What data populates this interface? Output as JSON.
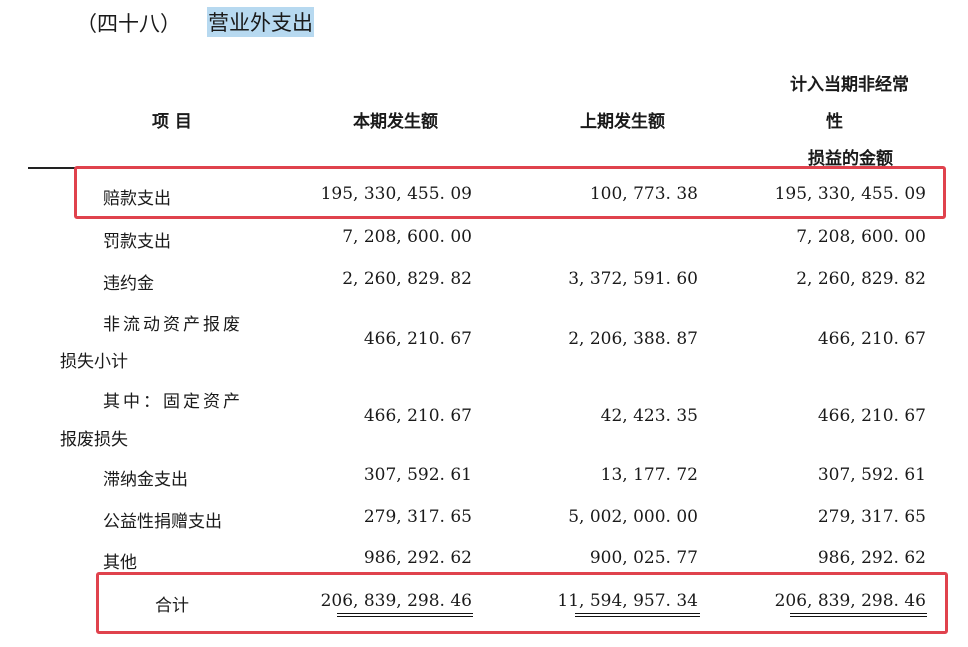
{
  "section": {
    "number": "（四十八）",
    "title": "营业外支出"
  },
  "headers": {
    "item": "项 目",
    "current": "本期发生额",
    "previous": "上期发生额",
    "nonrecurring_line1": "计入当期非经常",
    "nonrecurring_line2": "性",
    "nonrecurring_line3": "损益的金额"
  },
  "rows": [
    {
      "label_line1": "赔款支出",
      "label_line2": "",
      "current": "195, 330, 455. 09",
      "previous": "100, 773. 38",
      "nonrecurring": "195, 330, 455. 09"
    },
    {
      "label_line1": "罚款支出",
      "label_line2": "",
      "current": "7, 208, 600. 00",
      "previous": "",
      "nonrecurring": "7, 208, 600. 00"
    },
    {
      "label_line1": "违约金",
      "label_line2": "",
      "current": "2, 260, 829. 82",
      "previous": "3, 372, 591. 60",
      "nonrecurring": "2, 260, 829. 82"
    },
    {
      "label_line1": "非流动资产报废",
      "label_line2": "损失小计",
      "current": "466, 210. 67",
      "previous": "2, 206, 388. 87",
      "nonrecurring": "466, 210. 67"
    },
    {
      "label_line1": "其中：固定资产",
      "label_line2": "报废损失",
      "current": "466, 210. 67",
      "previous": "42, 423. 35",
      "nonrecurring": "466, 210. 67"
    },
    {
      "label_line1": "滞纳金支出",
      "label_line2": "",
      "current": "307, 592. 61",
      "previous": "13, 177. 72",
      "nonrecurring": "307, 592. 61"
    },
    {
      "label_line1": "公益性捐赠支出",
      "label_line2": "",
      "current": "279, 317. 65",
      "previous": "5, 002, 000. 00",
      "nonrecurring": "279, 317. 65"
    },
    {
      "label_line1": "其他",
      "label_line2": "",
      "current": "986, 292. 62",
      "previous": "900, 025. 77",
      "nonrecurring": "986, 292. 62"
    }
  ],
  "total": {
    "label": "合计",
    "current": "206, 839, 298. 46",
    "previous": "11, 594, 957. 34",
    "nonrecurring": "206, 839, 298. 46"
  },
  "highlight_color": "#e0424d",
  "selection_color": "#b7d9f0"
}
